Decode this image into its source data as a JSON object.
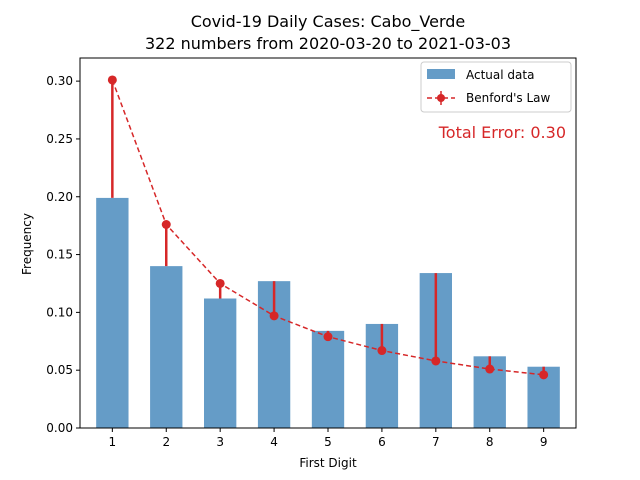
{
  "chart_data": {
    "type": "bar",
    "title": "Covid-19 Daily Cases: Cabo_Verde",
    "subtitle": "322 numbers from 2020-03-20 to 2021-03-03",
    "xlabel": "First Digit",
    "ylabel": "Frequency",
    "categories": [
      "1",
      "2",
      "3",
      "4",
      "5",
      "6",
      "7",
      "8",
      "9"
    ],
    "ylim": [
      0,
      0.32
    ],
    "yticks": [
      "0.00",
      "0.05",
      "0.10",
      "0.15",
      "0.20",
      "0.25",
      "0.30"
    ],
    "series": [
      {
        "name": "Actual data",
        "kind": "bar",
        "color": "#4a8bbd",
        "values": [
          0.199,
          0.14,
          0.112,
          0.127,
          0.084,
          0.09,
          0.134,
          0.062,
          0.053
        ]
      },
      {
        "name": "Benford's Law",
        "kind": "line-dashed-markers-with-error-bars",
        "color": "#d62728",
        "values": [
          0.301,
          0.176,
          0.125,
          0.097,
          0.079,
          0.067,
          0.058,
          0.051,
          0.046
        ]
      }
    ],
    "annotation": "Total Error: 0.30",
    "annotation_color": "#d62728",
    "legend_position": "upper-right",
    "grid": false
  }
}
